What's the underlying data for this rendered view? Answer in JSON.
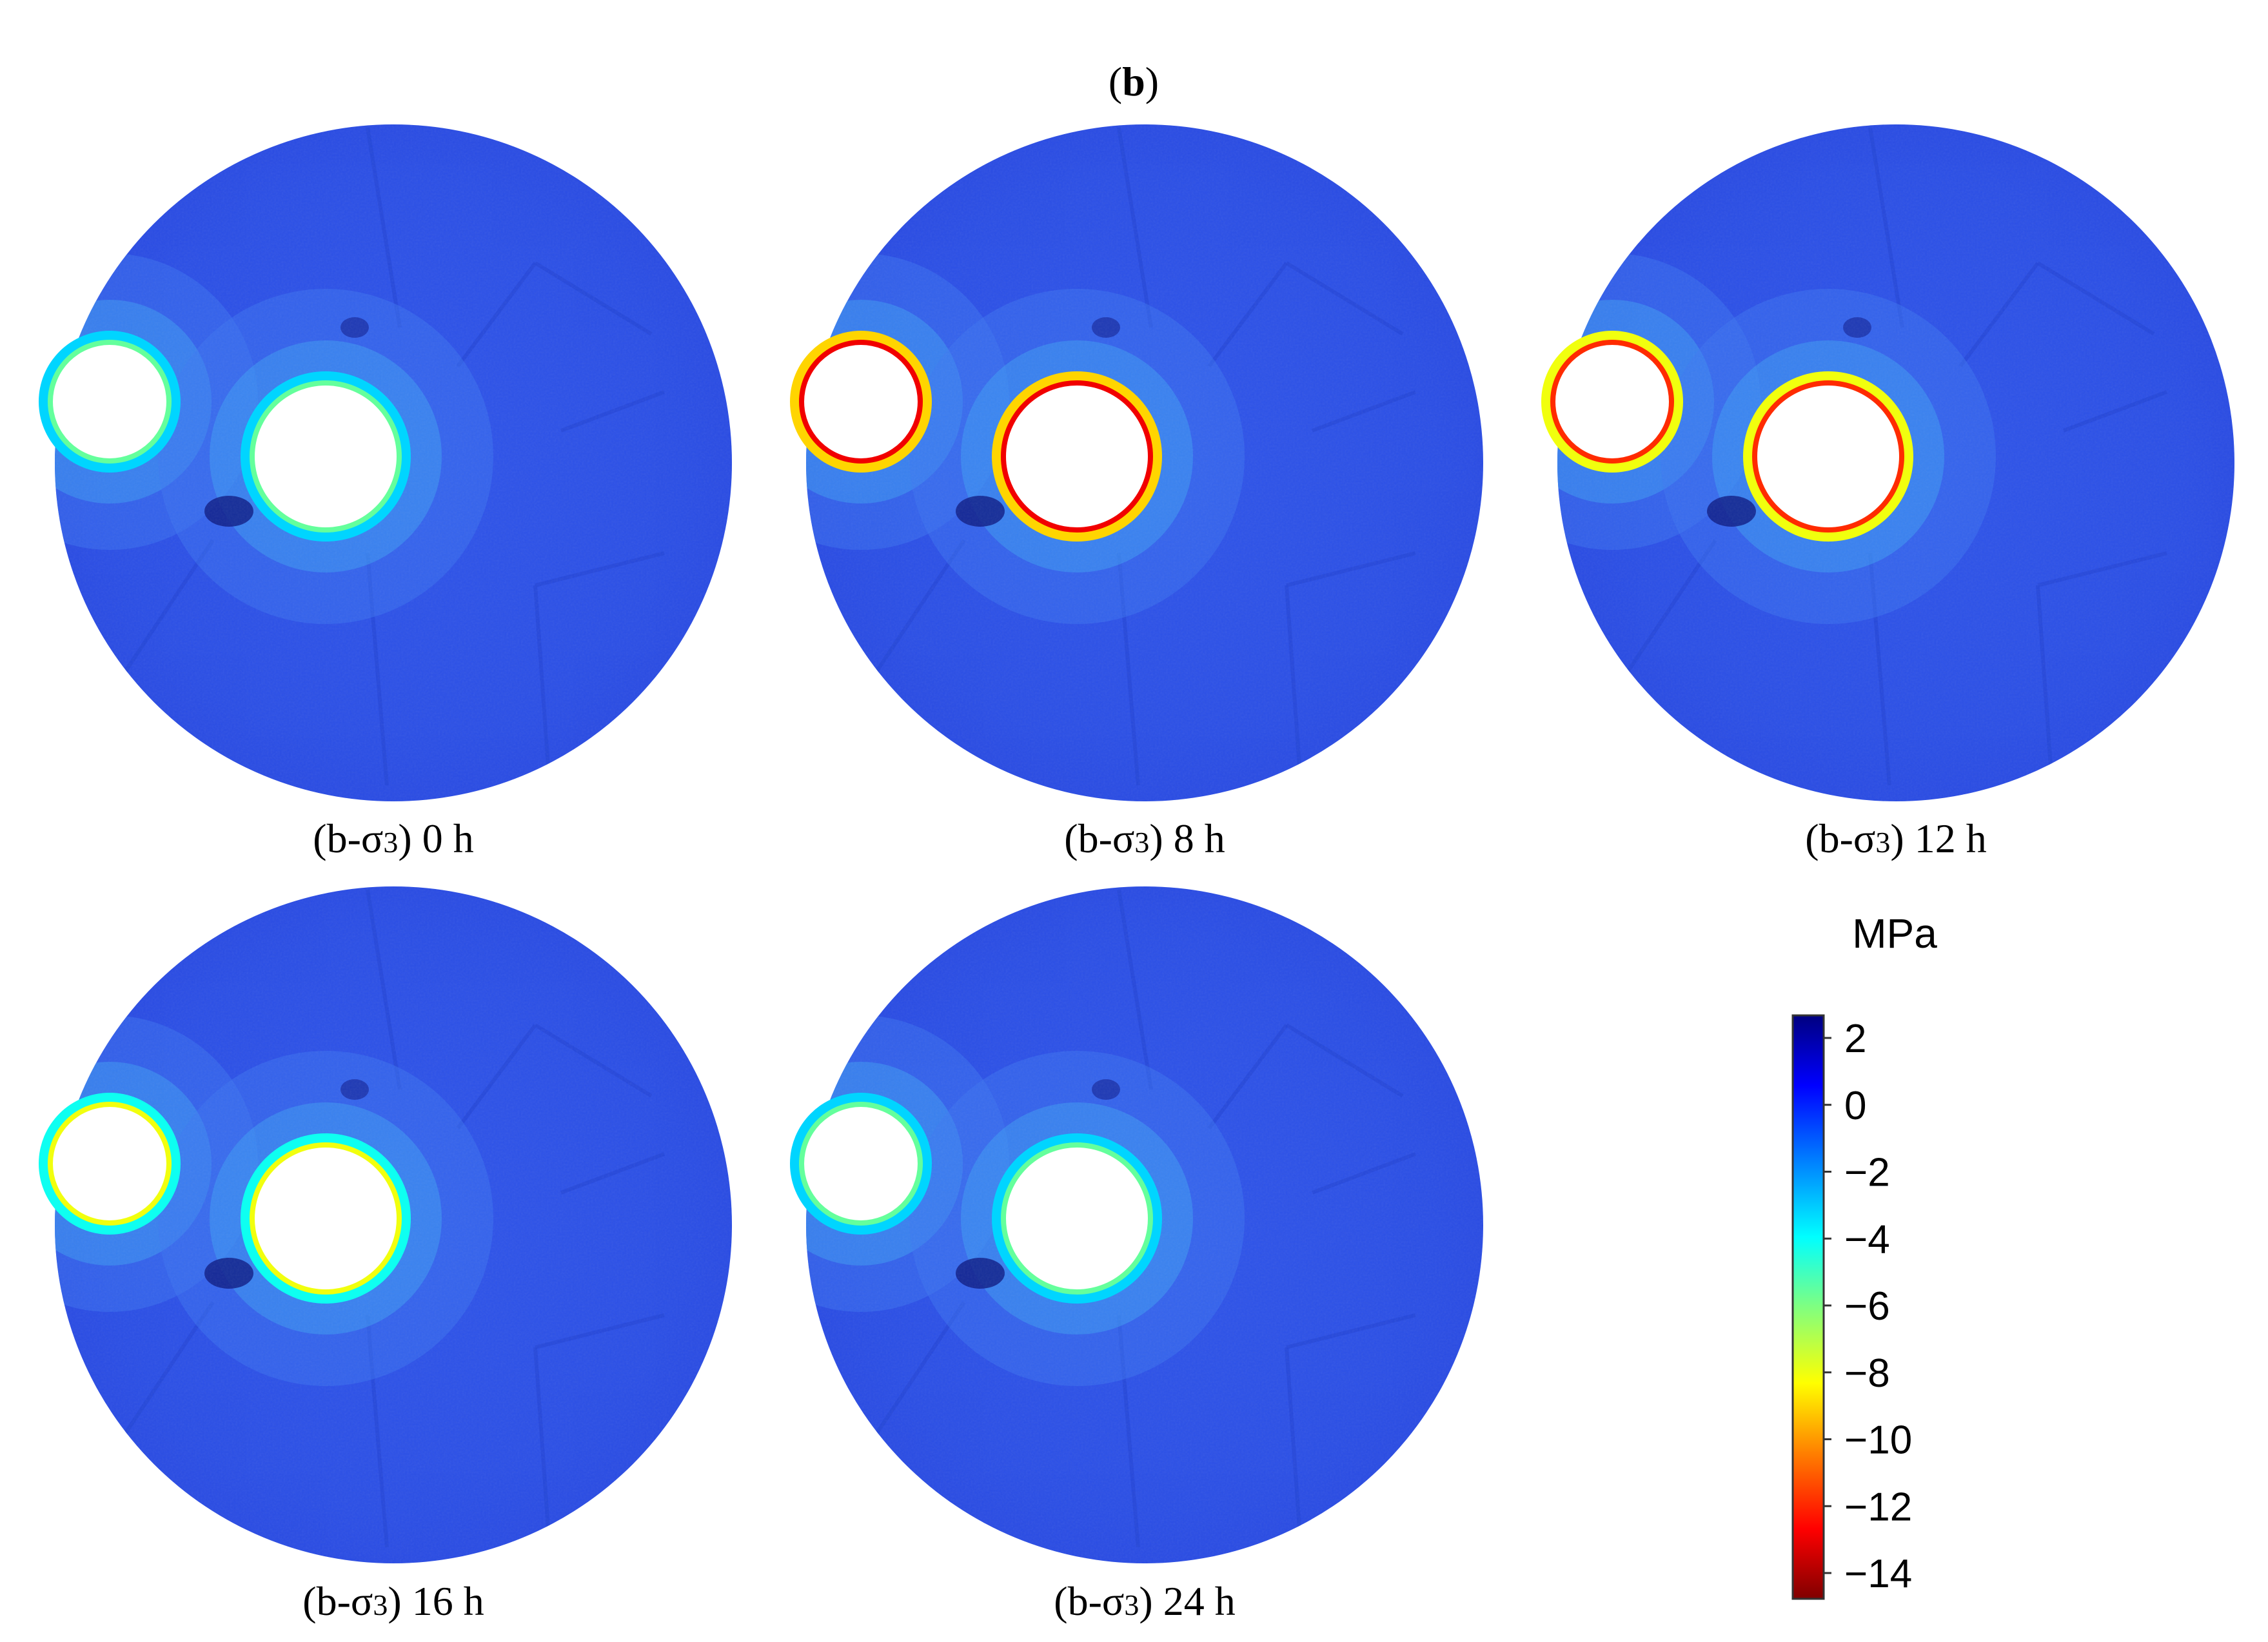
{
  "figure": {
    "panel_label_prefix": "(",
    "panel_label_bold": "b",
    "panel_label_suffix": ")"
  },
  "panels": [
    {
      "label": "(b-σ3) 0 h",
      "prefix": "(b-σ",
      "sub": "3",
      "suffix": ") 0 h",
      "time_h": 0,
      "edge_stress_mpa": -5.5
    },
    {
      "label": "(b-σ3) 8 h",
      "prefix": "(b-σ",
      "sub": "3",
      "suffix": ") 8 h",
      "time_h": 8,
      "edge_stress_mpa": -13
    },
    {
      "label": "(b-σ3) 12 h",
      "prefix": "(b-σ",
      "sub": "3",
      "suffix": ") 12 h",
      "time_h": 12,
      "edge_stress_mpa": -12
    },
    {
      "label": "(b-σ3) 16 h",
      "prefix": "(b-σ",
      "sub": "3",
      "suffix": ") 16 h",
      "time_h": 16,
      "edge_stress_mpa": -8
    },
    {
      "label": "(b-σ3) 24 h",
      "prefix": "(b-σ",
      "sub": "3",
      "suffix": ") 24 h",
      "time_h": 24,
      "edge_stress_mpa": -5.5
    }
  ],
  "colorbar": {
    "unit": "MPa",
    "min": -15,
    "max": 3,
    "ticks": [
      "2",
      "0",
      "−2",
      "−4",
      "−6",
      "−8",
      "−10",
      "−12",
      "−14"
    ],
    "colors": [
      "#800000",
      "#ff0000",
      "#ff8000",
      "#ffff00",
      "#80ff80",
      "#00ffff",
      "#0080ff",
      "#0000ff",
      "#000080"
    ]
  }
}
